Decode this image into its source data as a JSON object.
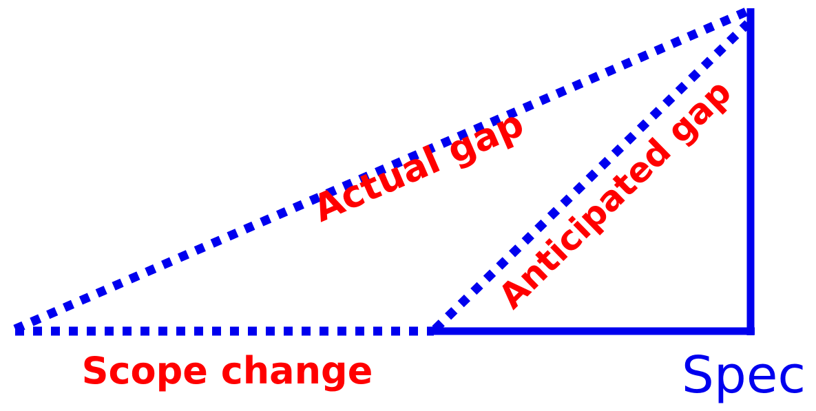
{
  "colors": {
    "line": "#0000ee",
    "label": "#ff0000",
    "spec_label": "#0000ee",
    "background": "#ffffff"
  },
  "labels": {
    "actual_gap": "Actual gap",
    "anticipated_gap": "Anticipated gap",
    "scope_change": "Scope change",
    "spec": "Spec"
  }
}
